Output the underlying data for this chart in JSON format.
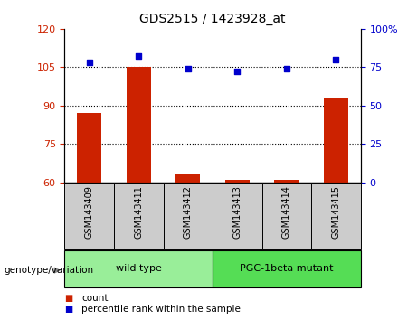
{
  "title": "GDS2515 / 1423928_at",
  "samples": [
    "GSM143409",
    "GSM143411",
    "GSM143412",
    "GSM143413",
    "GSM143414",
    "GSM143415"
  ],
  "count_values": [
    87,
    105,
    63,
    61,
    61,
    93
  ],
  "percentile_values": [
    78,
    82,
    74,
    72,
    74,
    80
  ],
  "ylim_left": [
    60,
    120
  ],
  "ylim_right": [
    0,
    100
  ],
  "yticks_left": [
    60,
    75,
    90,
    105,
    120
  ],
  "yticks_right": [
    0,
    25,
    50,
    75,
    100
  ],
  "ytick_labels_right": [
    "0",
    "25",
    "50",
    "75",
    "100%"
  ],
  "bar_color": "#cc2200",
  "dot_color": "#0000cc",
  "groups": [
    {
      "label": "wild type",
      "start": 0,
      "end": 3,
      "color": "#99ee99"
    },
    {
      "label": "PGC-1beta mutant",
      "start": 3,
      "end": 6,
      "color": "#55dd55"
    }
  ],
  "xlabel_group": "genotype/variation",
  "legend_count": "count",
  "legend_percentile": "percentile rank within the sample",
  "grid_yticks": [
    75,
    90,
    105
  ],
  "tick_area_color": "#cccccc",
  "bar_bottom": 60
}
